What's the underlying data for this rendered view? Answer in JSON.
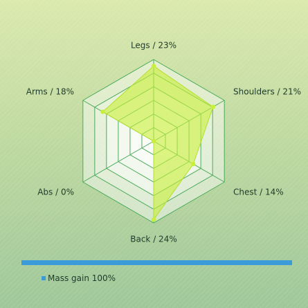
{
  "chart_data": {
    "type": "radar",
    "categories": [
      "Legs / 23%",
      "Shoulders / 21%",
      "Chest / 14%",
      "Back / 24%",
      "Abs / 0%",
      "Arms / 18%"
    ],
    "series": [
      {
        "name": "Mass gain 100%",
        "values": [
          23,
          21,
          14,
          24,
          0,
          18
        ]
      }
    ],
    "rlim": [
      0,
      25
    ],
    "grid": true,
    "legend_position": "bottom-left"
  },
  "colors": {
    "series_fill": "#c8ef3a",
    "series_point": "#c8ef3a",
    "grid_line": "#4bab5a",
    "legend_bar": "#3a9bd8",
    "legend_swatch": "#3a9bd8"
  },
  "legend": {
    "label": "Mass gain 100%"
  }
}
